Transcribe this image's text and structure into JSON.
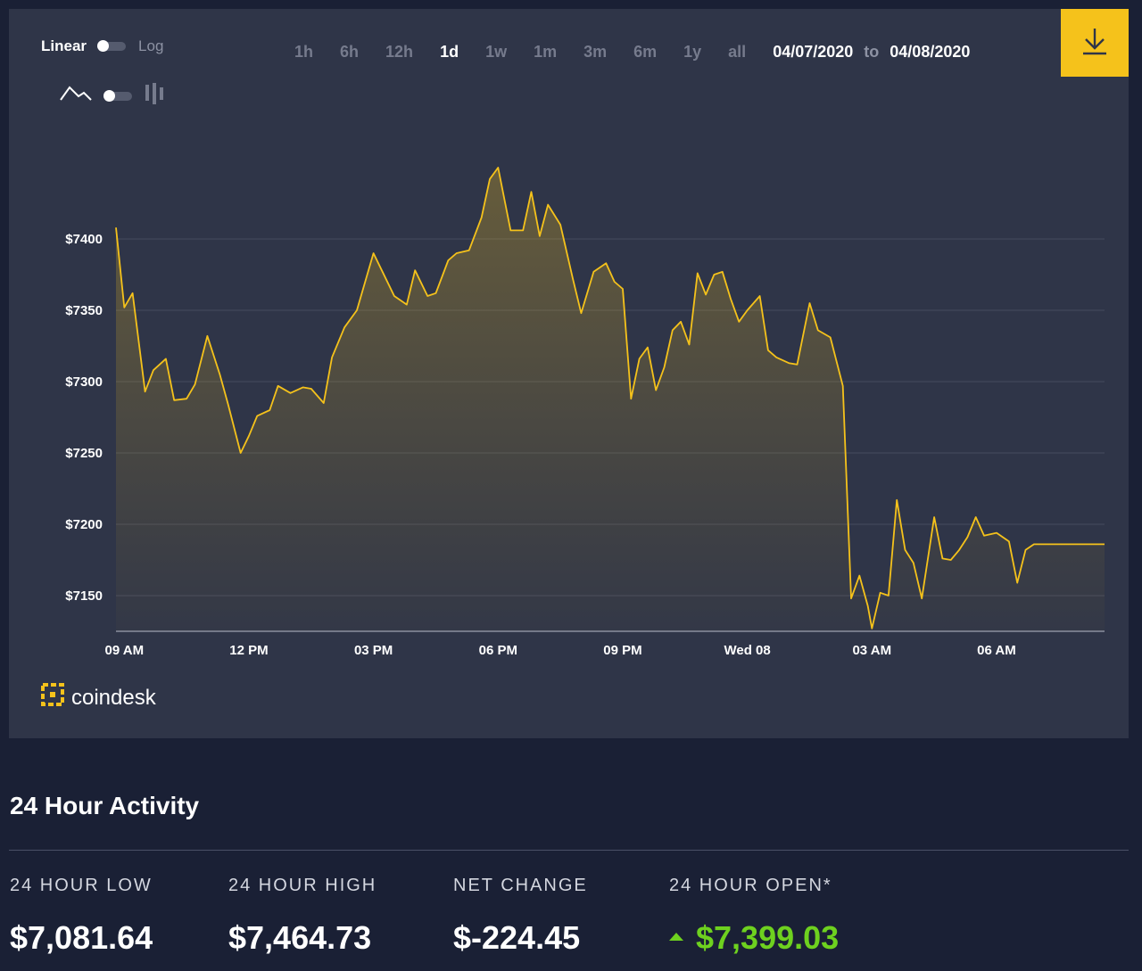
{
  "controls": {
    "scale_linear": "Linear",
    "scale_log": "Log",
    "line_icon": "line-chart-icon",
    "bar_icon": "candlestick-icon",
    "ranges": [
      "1h",
      "6h",
      "12h",
      "1d",
      "1w",
      "1m",
      "3m",
      "6m",
      "1y",
      "all"
    ],
    "active_range": "1d",
    "date_from": "04/07/2020",
    "date_to_word": "to",
    "date_to": "04/08/2020",
    "download_icon": "download-icon"
  },
  "brand": {
    "name": "coindesk"
  },
  "colors": {
    "accent": "#f5c21b",
    "line": "#f5c21b",
    "positive": "#6ed11f"
  },
  "chart_data": {
    "type": "area",
    "title": "",
    "xlabel": "",
    "ylabel": "",
    "ylim": [
      7125,
      7480
    ],
    "y_ticks": [
      7150,
      7200,
      7250,
      7300,
      7350,
      7400
    ],
    "y_tick_labels": [
      "$7150",
      "$7200",
      "$7250",
      "$7300",
      "$7350",
      "$7400"
    ],
    "x_ticks": [
      9,
      12,
      15,
      18,
      21,
      24,
      27,
      30
    ],
    "x_tick_labels": [
      "09 AM",
      "12 PM",
      "03 PM",
      "06 PM",
      "09 PM",
      "Wed 08",
      "03 AM",
      "06 AM"
    ],
    "xlim": [
      8.8,
      32.6
    ],
    "grid": true,
    "series": [
      {
        "x": [
          8.8,
          9.0,
          9.2,
          9.5,
          9.7,
          10.0,
          10.2,
          10.5,
          10.7,
          11.0,
          11.3,
          11.5,
          11.8,
          12.0,
          12.2,
          12.5,
          12.7,
          13.0,
          13.3,
          13.5,
          13.8,
          14.0,
          14.3,
          14.6,
          14.8,
          15.0,
          15.3,
          15.5,
          15.8,
          16.0,
          16.3,
          16.5,
          16.8,
          17.0,
          17.3,
          17.6,
          17.8,
          18.0,
          18.3,
          18.6,
          18.8,
          19.0,
          19.2,
          19.5,
          19.8,
          20.0,
          20.3,
          20.6,
          20.8,
          21.0,
          21.2,
          21.4,
          21.6,
          21.8,
          22.0,
          22.2,
          22.4,
          22.6,
          22.8,
          23.0,
          23.2,
          23.4,
          23.6,
          23.8,
          24.0,
          24.3,
          24.5,
          24.7,
          25.0,
          25.2,
          25.5,
          25.7,
          26.0,
          26.3,
          26.5,
          26.7,
          26.9,
          27.0,
          27.2,
          27.4,
          27.6,
          27.8,
          28.0,
          28.2,
          28.5,
          28.7,
          28.9,
          29.1,
          29.3,
          29.5,
          29.7,
          30.0,
          30.3,
          30.5,
          30.7,
          30.9,
          31.2,
          31.4,
          31.6,
          31.8,
          32.0,
          32.2,
          32.4,
          32.6
        ],
        "y": [
          7408,
          7352,
          7362,
          7293,
          7308,
          7316,
          7287,
          7288,
          7298,
          7332,
          7305,
          7284,
          7250,
          7262,
          7276,
          7280,
          7297,
          7292,
          7296,
          7295,
          7285,
          7317,
          7338,
          7350,
          7370,
          7390,
          7372,
          7360,
          7354,
          7378,
          7360,
          7362,
          7385,
          7390,
          7392,
          7415,
          7442,
          7450,
          7406,
          7406,
          7433,
          7402,
          7424,
          7410,
          7372,
          7348,
          7377,
          7383,
          7370,
          7365,
          7288,
          7316,
          7324,
          7294,
          7310,
          7336,
          7342,
          7326,
          7376,
          7361,
          7375,
          7377,
          7358,
          7342,
          7350,
          7360,
          7322,
          7317,
          7313,
          7312,
          7355,
          7336,
          7331,
          7297,
          7148,
          7164,
          7143,
          7127,
          7152,
          7150,
          7217,
          7182,
          7173,
          7148,
          7205,
          7176,
          7175,
          7182,
          7191,
          7205,
          7192,
          7194,
          7188,
          7159,
          7182,
          7186,
          7186,
          7186,
          7186,
          7186,
          7186,
          7186,
          7186,
          7186
        ]
      }
    ]
  },
  "activity": {
    "title": "24 Hour Activity",
    "stats": [
      {
        "label": "24 HOUR LOW",
        "value": "$7,081.64"
      },
      {
        "label": "24 HOUR HIGH",
        "value": "$7,464.73"
      },
      {
        "label": "NET CHANGE",
        "value": "$-224.45"
      },
      {
        "label": "24 HOUR OPEN*",
        "value": "$7,399.03"
      }
    ]
  }
}
